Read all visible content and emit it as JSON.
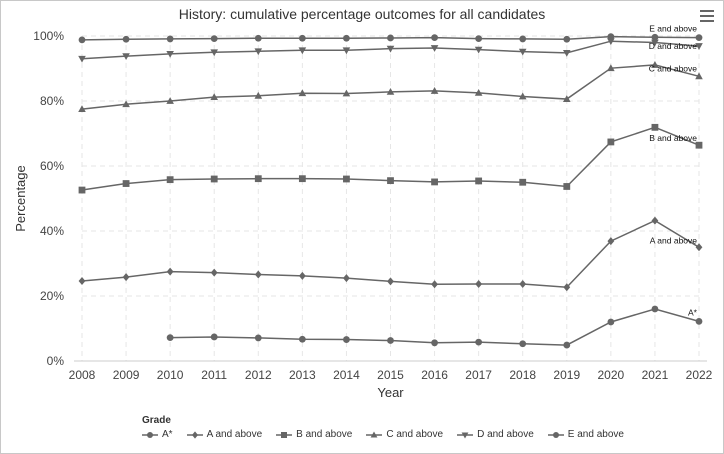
{
  "chart_data": {
    "type": "line",
    "title": "History: cumulative percentage outcomes for all candidates",
    "xlabel": "Year",
    "ylabel": "Percentage",
    "x": [
      2008,
      2009,
      2010,
      2011,
      2012,
      2013,
      2014,
      2015,
      2016,
      2017,
      2018,
      2019,
      2020,
      2021,
      2022
    ],
    "ylim": [
      0,
      100
    ],
    "yticks": [
      0,
      20,
      40,
      60,
      80,
      100
    ],
    "ytick_labels": [
      "0%",
      "20%",
      "40%",
      "60%",
      "80%",
      "100%"
    ],
    "grid": true,
    "legend_title": "Grade",
    "legend_position": "bottom",
    "series": [
      {
        "name": "A*",
        "marker": "circle",
        "end_label": "A*",
        "values": [
          null,
          null,
          7.2,
          7.4,
          7.1,
          6.7,
          6.6,
          6.3,
          5.6,
          5.8,
          5.3,
          4.9,
          12.0,
          16.0,
          12.2
        ]
      },
      {
        "name": "A and above",
        "marker": "diamond",
        "end_label": "A and above",
        "values": [
          24.6,
          25.8,
          27.5,
          27.2,
          26.6,
          26.2,
          25.5,
          24.5,
          23.6,
          23.7,
          23.7,
          22.7,
          36.9,
          43.2,
          35.0
        ]
      },
      {
        "name": "B and above",
        "marker": "square",
        "end_label": "B and above",
        "values": [
          52.6,
          54.6,
          55.8,
          56.0,
          56.1,
          56.1,
          56.0,
          55.5,
          55.1,
          55.4,
          55.0,
          53.7,
          67.4,
          71.9,
          66.4
        ]
      },
      {
        "name": "C and above",
        "marker": "triangle",
        "end_label": "C and above",
        "values": [
          77.5,
          79.0,
          80.0,
          81.2,
          81.6,
          82.4,
          82.3,
          82.8,
          83.1,
          82.5,
          81.4,
          80.6,
          90.1,
          91.1,
          87.6
        ]
      },
      {
        "name": "D and above",
        "marker": "triangle-down",
        "end_label": "D and above",
        "values": [
          93.0,
          93.8,
          94.5,
          95.0,
          95.3,
          95.6,
          95.6,
          96.1,
          96.3,
          95.8,
          95.2,
          94.8,
          98.4,
          98.0,
          96.9
        ]
      },
      {
        "name": "E and above",
        "marker": "circle",
        "end_label": "E and above",
        "values": [
          98.8,
          99.0,
          99.1,
          99.2,
          99.3,
          99.3,
          99.3,
          99.4,
          99.5,
          99.2,
          99.1,
          99.0,
          99.8,
          99.6,
          99.5
        ]
      }
    ]
  },
  "series_color": "#666666"
}
